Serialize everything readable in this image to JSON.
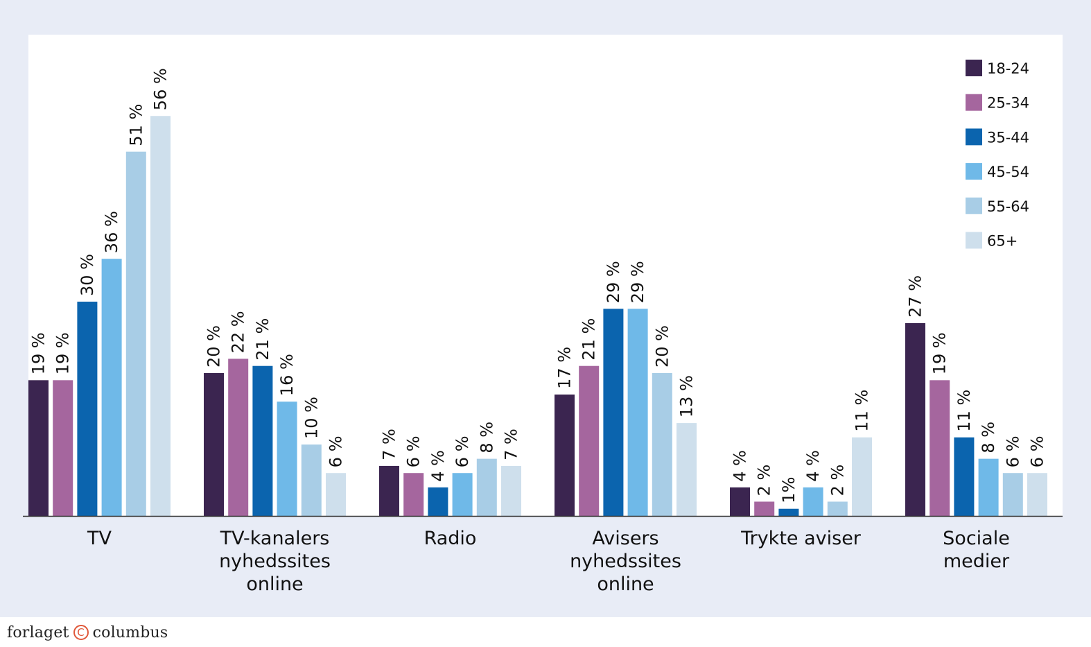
{
  "chart_data": {
    "type": "bar",
    "categories": [
      [
        "TV"
      ],
      [
        "TV-kanalers",
        "nyhedssites",
        "online"
      ],
      [
        "Radio"
      ],
      [
        "Avisers",
        "nyhedssites",
        "online"
      ],
      [
        "Trykte aviser"
      ],
      [
        "Sociale",
        "medier"
      ]
    ],
    "series": [
      {
        "name": "18-24",
        "color": "#3b2550",
        "values": [
          19,
          20,
          7,
          17,
          4,
          27
        ],
        "labels": [
          "19 %",
          "20 %",
          "7 %",
          "17 %",
          "4 %",
          "27 %"
        ]
      },
      {
        "name": "25-34",
        "color": "#a5669e",
        "values": [
          19,
          22,
          6,
          21,
          2,
          19
        ],
        "labels": [
          "19 %",
          "22 %",
          "6 %",
          "21 %",
          "2 %",
          "19 %"
        ]
      },
      {
        "name": "35-44",
        "color": "#0b64ae",
        "values": [
          30,
          21,
          4,
          29,
          1,
          11
        ],
        "labels": [
          "30 %",
          "21 %",
          "4 %",
          "29 %",
          "1%",
          "11 %"
        ]
      },
      {
        "name": "45-54",
        "color": "#6fb9e8",
        "values": [
          36,
          16,
          6,
          29,
          4,
          8
        ],
        "labels": [
          "36 %",
          "16 %",
          "6 %",
          "29 %",
          "4 %",
          "8 %"
        ]
      },
      {
        "name": "55-64",
        "color": "#a8cde6",
        "values": [
          51,
          10,
          8,
          20,
          2,
          6
        ],
        "labels": [
          "51 %",
          "10 %",
          "8 %",
          "20 %",
          "2 %",
          "6 %"
        ]
      },
      {
        "name": "65+",
        "color": "#cedfec",
        "values": [
          56,
          6,
          7,
          13,
          11,
          6
        ],
        "labels": [
          "56 %",
          "6 %",
          "7 %",
          "13 %",
          "11 %",
          "6 %"
        ]
      }
    ],
    "ylim": [
      0,
      60
    ],
    "title": "",
    "xlabel": "",
    "ylabel": "",
    "legend_position": "top-right",
    "grid": false
  },
  "footer": {
    "brand_left": "forlaget",
    "brand_mark": "C",
    "brand_right": "columbus"
  }
}
